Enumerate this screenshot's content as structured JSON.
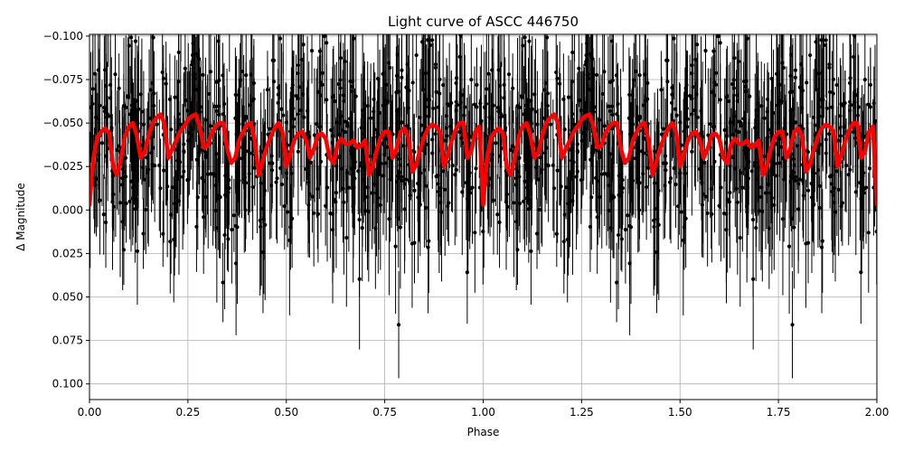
{
  "chart_data": {
    "type": "scatter",
    "title": "Light curve of ASCC 446750",
    "xlabel": "Phase",
    "ylabel": "Δ Magnitude",
    "xlim": [
      0.0,
      2.0
    ],
    "ylim": [
      0.109,
      -0.101
    ],
    "y_inverted": true,
    "grid": true,
    "x_ticks": [
      "0.00",
      "0.25",
      "0.50",
      "0.75",
      "1.00",
      "1.25",
      "1.50",
      "1.75",
      "2.00"
    ],
    "y_ticks": [
      "−0.100",
      "−0.075",
      "−0.050",
      "−0.025",
      "0.000",
      "0.025",
      "0.050",
      "0.075",
      "0.100"
    ],
    "x_tick_values": [
      0.0,
      0.25,
      0.5,
      0.75,
      1.0,
      1.25,
      1.5,
      1.75,
      2.0
    ],
    "y_tick_values": [
      -0.1,
      -0.075,
      -0.05,
      -0.025,
      0.0,
      0.025,
      0.05,
      0.075,
      0.1
    ],
    "colors": {
      "data": "#000000",
      "model": "#ff0000",
      "grid": "#b0b0b0"
    },
    "series": [
      {
        "kind": "observations with error bars",
        "color": "#000000",
        "point_count_per_phase_cycle": 700,
        "typical_error": 0.03
      },
      {
        "kind": "model fit",
        "color": "#ff0000",
        "x": [
          0.0,
          0.01,
          0.02,
          0.03,
          0.04,
          0.05,
          0.06,
          0.07,
          0.08,
          0.09,
          0.1,
          0.11,
          0.12,
          0.13,
          0.14,
          0.15,
          0.16,
          0.17,
          0.18,
          0.19,
          0.2,
          0.21,
          0.22,
          0.23,
          0.24,
          0.25,
          0.26,
          0.27,
          0.28,
          0.29,
          0.3,
          0.31,
          0.32,
          0.33,
          0.34,
          0.35,
          0.36,
          0.37,
          0.38,
          0.39,
          0.4,
          0.41,
          0.42,
          0.43,
          0.44,
          0.45,
          0.46,
          0.47,
          0.48,
          0.49,
          0.5,
          0.51,
          0.52,
          0.53,
          0.54,
          0.55,
          0.56,
          0.57,
          0.58,
          0.59,
          0.6,
          0.61,
          0.62,
          0.63,
          0.64,
          0.65,
          0.66,
          0.67,
          0.68,
          0.69,
          0.7,
          0.71,
          0.72,
          0.73,
          0.74,
          0.75,
          0.76,
          0.77,
          0.78,
          0.79,
          0.8,
          0.81,
          0.82,
          0.83,
          0.84,
          0.85,
          0.86,
          0.87,
          0.88,
          0.89,
          0.9,
          0.91,
          0.92,
          0.93,
          0.94,
          0.95,
          0.96,
          0.97,
          0.98,
          0.99,
          1.0
        ],
        "y": [
          -0.003,
          -0.03,
          -0.042,
          -0.045,
          -0.047,
          -0.044,
          -0.025,
          -0.02,
          -0.03,
          -0.042,
          -0.048,
          -0.05,
          -0.043,
          -0.03,
          -0.033,
          -0.043,
          -0.05,
          -0.053,
          -0.055,
          -0.05,
          -0.03,
          -0.035,
          -0.04,
          -0.045,
          -0.048,
          -0.052,
          -0.054,
          -0.055,
          -0.048,
          -0.036,
          -0.037,
          -0.044,
          -0.048,
          -0.05,
          -0.05,
          -0.035,
          -0.027,
          -0.03,
          -0.04,
          -0.045,
          -0.049,
          -0.05,
          -0.04,
          -0.02,
          -0.028,
          -0.036,
          -0.042,
          -0.047,
          -0.05,
          -0.045,
          -0.025,
          -0.032,
          -0.04,
          -0.044,
          -0.045,
          -0.04,
          -0.03,
          -0.035,
          -0.043,
          -0.044,
          -0.041,
          -0.03,
          -0.027,
          -0.038,
          -0.041,
          -0.038,
          -0.038,
          -0.04,
          -0.036,
          -0.037,
          -0.04,
          -0.02,
          -0.025,
          -0.035,
          -0.042,
          -0.045,
          -0.045,
          -0.03,
          -0.035,
          -0.045,
          -0.047,
          -0.042,
          -0.022,
          -0.026,
          -0.035,
          -0.042,
          -0.047,
          -0.049,
          -0.048,
          -0.045,
          -0.025,
          -0.032,
          -0.04,
          -0.046,
          -0.05,
          -0.05,
          -0.03,
          -0.034,
          -0.045,
          -0.048,
          -0.003
        ]
      }
    ]
  }
}
